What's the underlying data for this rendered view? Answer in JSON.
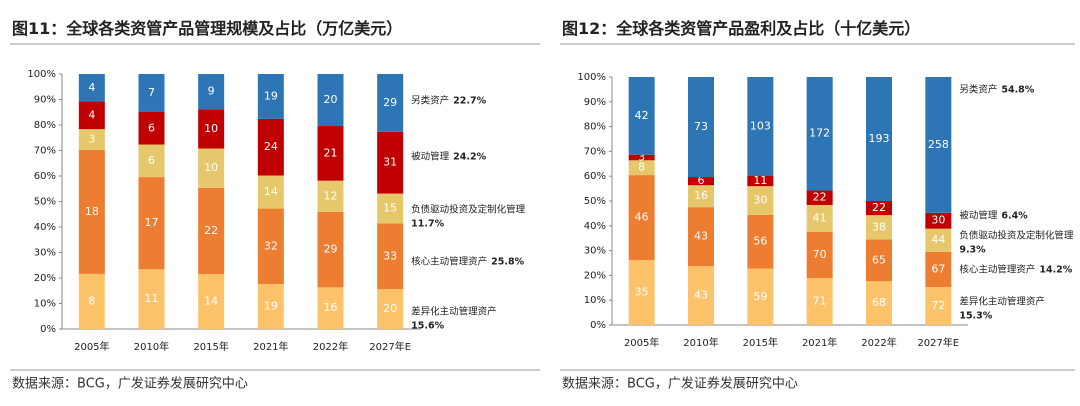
{
  "chart_data": [
    {
      "type": "stacked_percent_bar",
      "title": "图11：全球各类资管产品管理规模及占比（万亿美元）",
      "source": "数据来源：BCG，广发证券发展研究中心",
      "categories": [
        "2005年",
        "2010年",
        "2015年",
        "2021年",
        "2022年",
        "2027年E"
      ],
      "ylim": [
        0,
        100
      ],
      "yticks": [
        {
          "value": 0,
          "label": "0%"
        },
        {
          "value": 10,
          "label": "10%"
        },
        {
          "value": 20,
          "label": "20%"
        },
        {
          "value": 30,
          "label": "30%"
        },
        {
          "value": 40,
          "label": "40%"
        },
        {
          "value": 50,
          "label": "50%"
        },
        {
          "value": 60,
          "label": "60%"
        },
        {
          "value": 70,
          "label": "70%"
        },
        {
          "value": 80,
          "label": "80%"
        },
        {
          "value": 90,
          "label": "90%"
        },
        {
          "value": 100,
          "label": "100%"
        }
      ],
      "series": [
        {
          "name": "差异化主动管理资产",
          "color": "#fdc36b",
          "values": [
            8,
            11,
            14,
            19,
            16,
            20
          ],
          "share_label": "15.6%"
        },
        {
          "name": "核心主动管理资产",
          "color": "#ed7d31",
          "values": [
            18,
            17,
            22,
            32,
            29,
            33
          ],
          "share_label": "25.8%"
        },
        {
          "name": "负债驱动投资及定制化管理",
          "color": "#e6c76b",
          "values": [
            3,
            6,
            10,
            14,
            12,
            15
          ],
          "share_label": "11.7%"
        },
        {
          "name": "被动管理",
          "color": "#c00000",
          "values": [
            4,
            6,
            10,
            24,
            21,
            31
          ],
          "share_label": "24.2%"
        },
        {
          "name": "另类资产",
          "color": "#2e75b6",
          "values": [
            4,
            7,
            9,
            19,
            20,
            29
          ],
          "share_label": "22.7%"
        }
      ]
    },
    {
      "type": "stacked_percent_bar",
      "title": "图12：全球各类资管产品盈利及占比（十亿美元）",
      "source": "数据来源：BCG，广发证券发展研究中心",
      "categories": [
        "2005年",
        "2010年",
        "2015年",
        "2021年",
        "2022年",
        "2027年E"
      ],
      "ylim": [
        0,
        100
      ],
      "yticks": [
        {
          "value": 0,
          "label": "0%"
        },
        {
          "value": 10,
          "label": "10%"
        },
        {
          "value": 20,
          "label": "20%"
        },
        {
          "value": 30,
          "label": "30%"
        },
        {
          "value": 40,
          "label": "40%"
        },
        {
          "value": 50,
          "label": "50%"
        },
        {
          "value": 60,
          "label": "60%"
        },
        {
          "value": 70,
          "label": "70%"
        },
        {
          "value": 80,
          "label": "80%"
        },
        {
          "value": 90,
          "label": "90%"
        },
        {
          "value": 100,
          "label": "100%"
        }
      ],
      "series": [
        {
          "name": "差异化主动管理资产",
          "color": "#fdc36b",
          "values": [
            35,
            43,
            59,
            71,
            68,
            72
          ],
          "share_label": "15.3%"
        },
        {
          "name": "核心主动管理资产",
          "color": "#ed7d31",
          "values": [
            46,
            43,
            56,
            70,
            65,
            67
          ],
          "share_label": "14.2%"
        },
        {
          "name": "负债驱动投资及定制化管理",
          "color": "#e6c76b",
          "values": [
            8,
            16,
            30,
            41,
            38,
            44
          ],
          "share_label": "9.3%"
        },
        {
          "name": "被动管理",
          "color": "#c00000",
          "values": [
            3,
            6,
            11,
            22,
            22,
            30
          ],
          "share_label": "6.4%"
        },
        {
          "name": "另类资产",
          "color": "#2e75b6",
          "values": [
            42,
            73,
            103,
            172,
            193,
            258
          ],
          "share_label": "54.8%"
        }
      ]
    }
  ]
}
